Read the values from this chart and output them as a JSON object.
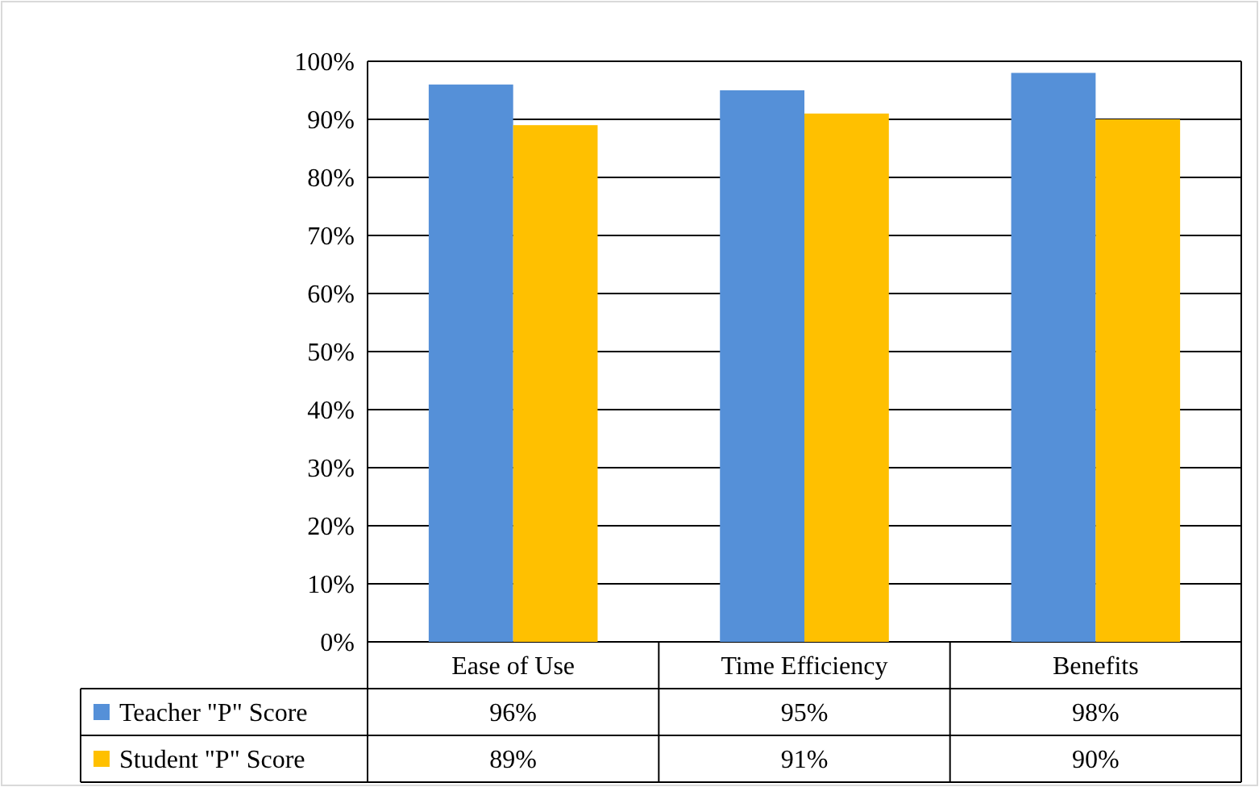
{
  "chart_data": {
    "type": "bar",
    "categories": [
      "Ease of Use",
      "Time Efficiency",
      "Benefits"
    ],
    "series": [
      {
        "name": "Teacher \"P\" Score",
        "color": "#5590d8",
        "values": [
          96,
          95,
          98
        ],
        "value_labels": [
          "96%",
          "95%",
          "98%"
        ]
      },
      {
        "name": "Student \"P\" Score",
        "color": "#ffc000",
        "values": [
          89,
          91,
          90
        ],
        "value_labels": [
          "89%",
          "91%",
          "90%"
        ]
      }
    ],
    "ylim": [
      0,
      100
    ],
    "yticks": [
      {
        "value": 0,
        "label": "0%"
      },
      {
        "value": 10,
        "label": "10%"
      },
      {
        "value": 20,
        "label": "20%"
      },
      {
        "value": 30,
        "label": "30%"
      },
      {
        "value": 40,
        "label": "40%"
      },
      {
        "value": 50,
        "label": "50%"
      },
      {
        "value": 60,
        "label": "60%"
      },
      {
        "value": 70,
        "label": "70%"
      },
      {
        "value": 80,
        "label": "80%"
      },
      {
        "value": 90,
        "label": "90%"
      },
      {
        "value": 100,
        "label": "100%"
      }
    ],
    "grid": "y",
    "legend": "bottom"
  }
}
